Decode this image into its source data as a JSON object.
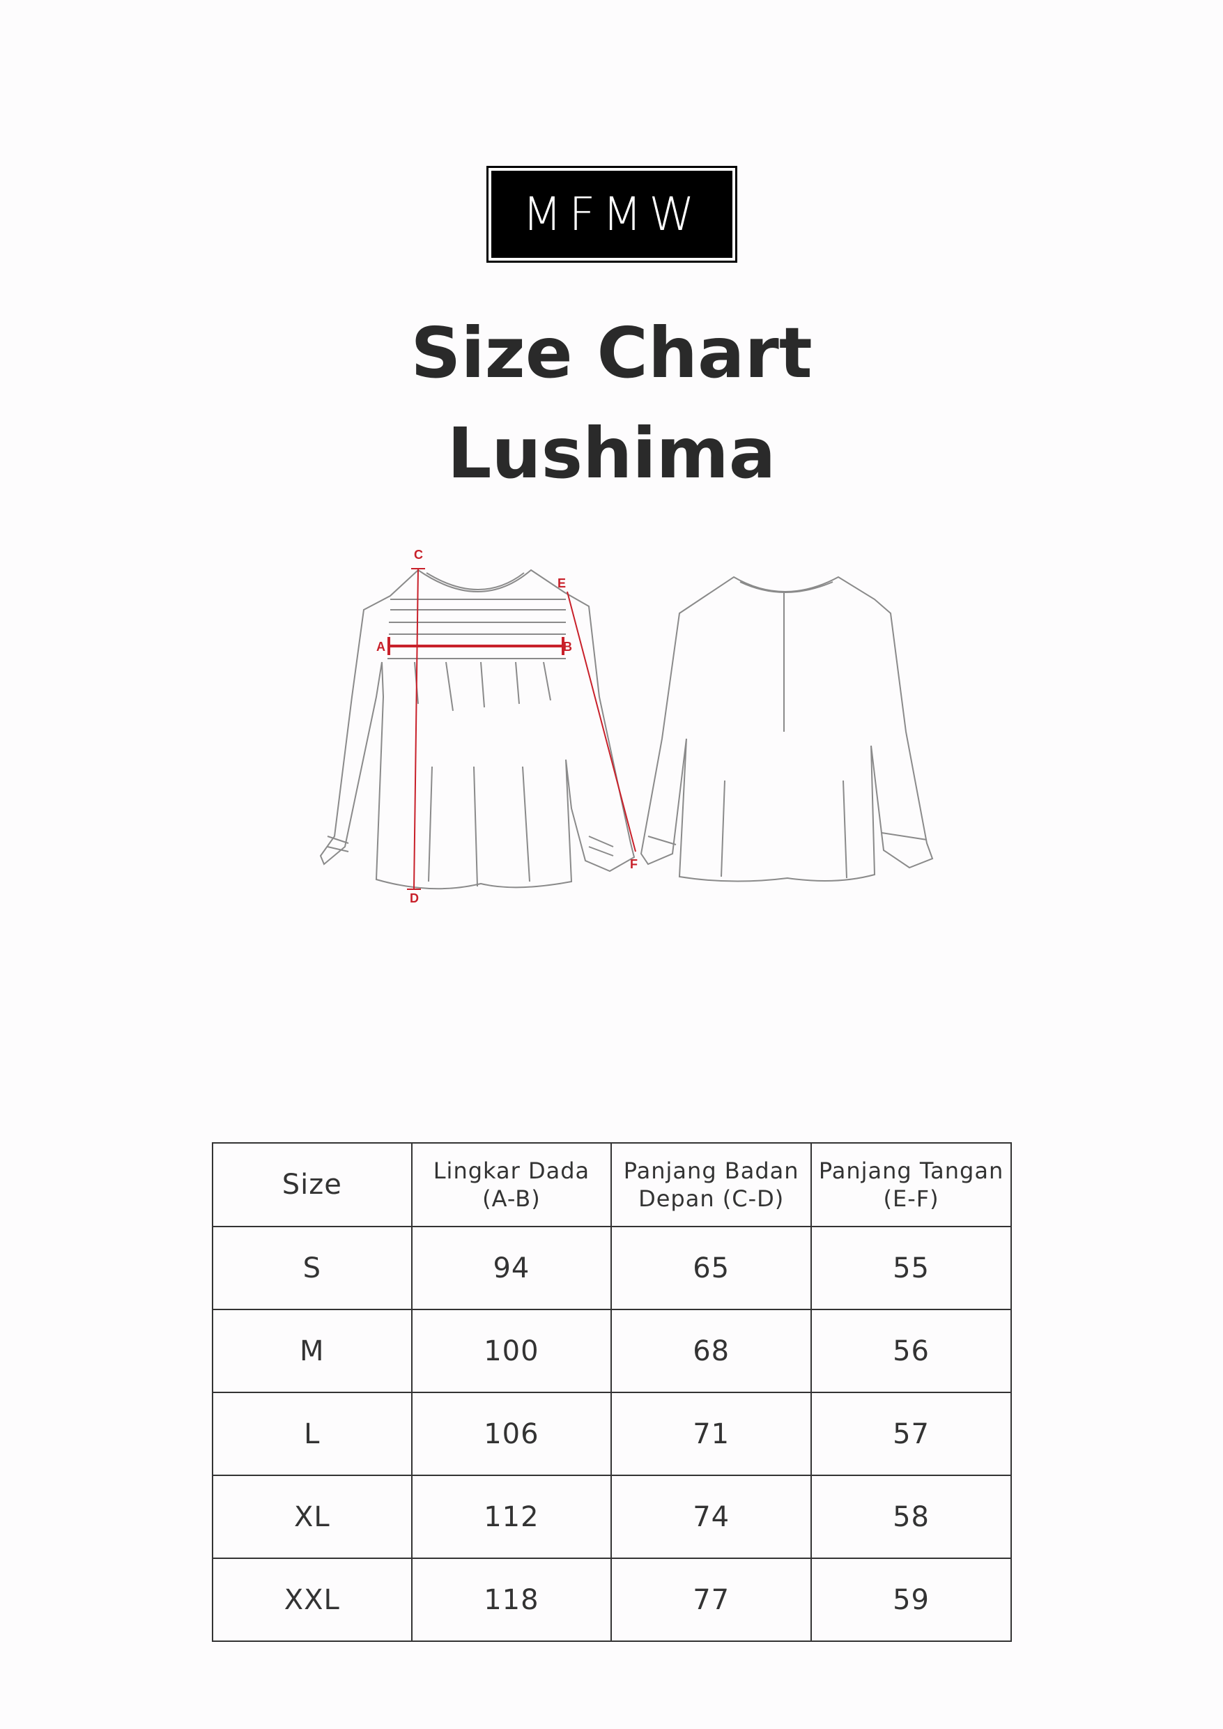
{
  "brand": {
    "logo_text": "MFMW"
  },
  "title": {
    "line1": "Size Chart",
    "line2": "Lushima"
  },
  "diagram": {
    "measure_color": "#c8202a",
    "labels": {
      "a": "A",
      "b": "B",
      "c": "C",
      "d": "D",
      "e": "E",
      "f": "F"
    }
  },
  "table": {
    "headers": [
      {
        "line1": "Size",
        "line2": ""
      },
      {
        "line1": "Lingkar Dada",
        "line2": "(A-B)"
      },
      {
        "line1": "Panjang Badan",
        "line2": "Depan (C-D)"
      },
      {
        "line1": "Panjang Tangan",
        "line2": "(E-F)"
      }
    ],
    "rows": [
      [
        "S",
        "94",
        "65",
        "55"
      ],
      [
        "M",
        "100",
        "68",
        "56"
      ],
      [
        "L",
        "106",
        "71",
        "57"
      ],
      [
        "XL",
        "112",
        "74",
        "58"
      ],
      [
        "XXL",
        "118",
        "77",
        "59"
      ]
    ]
  }
}
